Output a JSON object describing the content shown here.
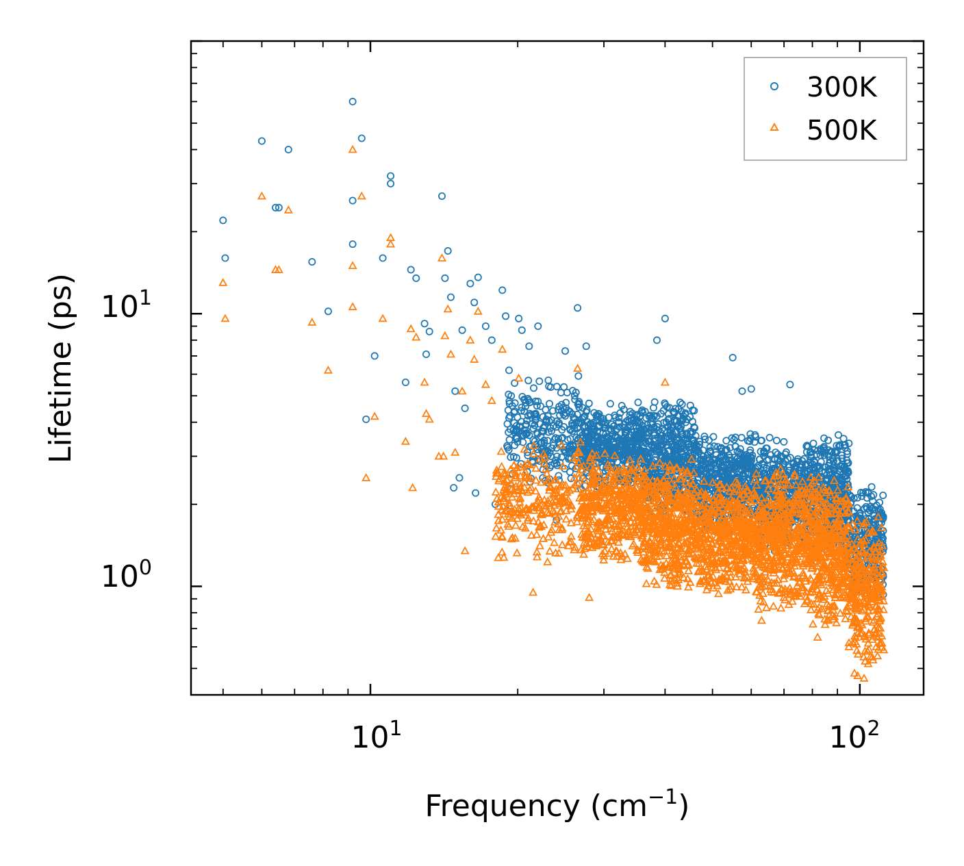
{
  "chart_data": {
    "type": "scatter",
    "xscale": "log",
    "yscale": "log",
    "xlim": [
      4.3,
      135
    ],
    "ylim": [
      0.4,
      100
    ],
    "xlabel": "Frequency (cm",
    "xlabel_sup": "−1",
    "xlabel_suffix": ")",
    "ylabel": "Lifetime (ps)",
    "xticks": [
      {
        "base": "10",
        "exp": "1",
        "value": 10
      },
      {
        "base": "10",
        "exp": "2",
        "value": 100
      }
    ],
    "yticks": [
      {
        "base": "10",
        "exp": "0",
        "value": 1
      },
      {
        "base": "10",
        "exp": "1",
        "value": 10
      }
    ],
    "legend_position": "top-right",
    "series": [
      {
        "name": "300K",
        "color": "#1f77b4",
        "marker": "circle",
        "points": [
          [
            5.0,
            22.0
          ],
          [
            5.05,
            16.0
          ],
          [
            6.0,
            43.0
          ],
          [
            6.4,
            24.5
          ],
          [
            6.5,
            24.5
          ],
          [
            6.8,
            40.0
          ],
          [
            7.6,
            15.5
          ],
          [
            8.2,
            10.2
          ],
          [
            9.2,
            60.0
          ],
          [
            9.2,
            26.0
          ],
          [
            9.2,
            18.0
          ],
          [
            9.6,
            44.0
          ],
          [
            9.8,
            4.1
          ],
          [
            10.2,
            7.0
          ],
          [
            10.6,
            16.0
          ],
          [
            11.0,
            32.0
          ],
          [
            11.0,
            30.0
          ],
          [
            11.8,
            5.6
          ],
          [
            12.1,
            14.5
          ],
          [
            12.4,
            13.5
          ],
          [
            12.9,
            9.2
          ],
          [
            13.0,
            7.1
          ],
          [
            13.2,
            8.6
          ],
          [
            14.0,
            27.0
          ],
          [
            14.2,
            13.5
          ],
          [
            14.4,
            17.0
          ],
          [
            14.6,
            11.5
          ],
          [
            14.9,
            5.2
          ],
          [
            15.4,
            8.7
          ],
          [
            15.6,
            4.5
          ],
          [
            16.0,
            12.9
          ],
          [
            16.3,
            11.0
          ],
          [
            16.6,
            13.6
          ],
          [
            17.2,
            9.0
          ],
          [
            17.7,
            8.0
          ],
          [
            18.6,
            12.2
          ],
          [
            18.9,
            9.8
          ],
          [
            19.2,
            6.2
          ],
          [
            20.1,
            9.6
          ],
          [
            20.4,
            8.7
          ],
          [
            21.1,
            7.6
          ],
          [
            22.0,
            9.0
          ],
          [
            23.1,
            5.7
          ],
          [
            25.0,
            7.3
          ],
          [
            26.5,
            10.5
          ],
          [
            27.6,
            7.6
          ],
          [
            38.5,
            8.0
          ],
          [
            40.0,
            9.6
          ],
          [
            55.0,
            6.9
          ],
          [
            57.5,
            5.2
          ],
          [
            60.0,
            5.3
          ],
          [
            72.0,
            5.5
          ],
          [
            16.4,
            2.2
          ],
          [
            18.0,
            2.0
          ],
          [
            19.0,
            1.9
          ],
          [
            22.5,
            2.5
          ],
          [
            24.0,
            1.75
          ],
          [
            15.2,
            2.5
          ],
          [
            14.8,
            2.3
          ]
        ],
        "clusters": [
          {
            "x": [
              19,
              27
            ],
            "y": [
              2.2,
              6.0
            ],
            "n": 260,
            "seed": 11
          },
          {
            "x": [
              27,
              36
            ],
            "y": [
              2.2,
              4.8
            ],
            "n": 420,
            "seed": 12
          },
          {
            "x": [
              36,
              46
            ],
            "y": [
              1.7,
              5.0
            ],
            "n": 450,
            "seed": 13
          },
          {
            "x": [
              46,
              62
            ],
            "y": [
              1.5,
              3.8
            ],
            "n": 500,
            "seed": 14
          },
          {
            "x": [
              62,
              80
            ],
            "y": [
              1.3,
              3.6
            ],
            "n": 450,
            "seed": 15
          },
          {
            "x": [
              80,
              95
            ],
            "y": [
              1.2,
              3.8
            ],
            "n": 380,
            "seed": 16
          },
          {
            "x": [
              95,
              112
            ],
            "y": [
              0.9,
              2.4
            ],
            "n": 260,
            "seed": 17
          }
        ]
      },
      {
        "name": "500K",
        "color": "#ff7f0e",
        "marker": "triangle",
        "points": [
          [
            5.0,
            13.0
          ],
          [
            5.05,
            9.6
          ],
          [
            6.0,
            27.0
          ],
          [
            6.4,
            14.5
          ],
          [
            6.5,
            14.5
          ],
          [
            6.8,
            24.0
          ],
          [
            7.6,
            9.3
          ],
          [
            8.2,
            6.2
          ],
          [
            9.2,
            40.0
          ],
          [
            9.2,
            15.0
          ],
          [
            9.2,
            10.6
          ],
          [
            9.6,
            27.0
          ],
          [
            9.8,
            2.5
          ],
          [
            10.2,
            4.2
          ],
          [
            10.6,
            9.6
          ],
          [
            11.0,
            19.0
          ],
          [
            11.0,
            18.0
          ],
          [
            11.8,
            3.4
          ],
          [
            12.1,
            8.8
          ],
          [
            12.4,
            8.2
          ],
          [
            12.9,
            5.6
          ],
          [
            13.0,
            4.3
          ],
          [
            13.2,
            4.1
          ],
          [
            14.0,
            16.0
          ],
          [
            14.2,
            8.3
          ],
          [
            14.4,
            10.4
          ],
          [
            14.6,
            7.1
          ],
          [
            14.9,
            3.1
          ],
          [
            15.4,
            5.2
          ],
          [
            15.6,
            1.35
          ],
          [
            16.0,
            8.0
          ],
          [
            16.3,
            6.8
          ],
          [
            16.6,
            10.2
          ],
          [
            17.2,
            5.5
          ],
          [
            17.7,
            4.8
          ],
          [
            18.6,
            7.4
          ],
          [
            20.1,
            5.8
          ],
          [
            26.5,
            6.3
          ],
          [
            40.0,
            5.6
          ],
          [
            12.2,
            2.3
          ],
          [
            13.8,
            3.0
          ],
          [
            14.1,
            3.0
          ],
          [
            21.5,
            0.95
          ],
          [
            28.0,
            0.91
          ],
          [
            63.0,
            0.75
          ],
          [
            82.0,
            0.65
          ],
          [
            95.0,
            0.6
          ],
          [
            97.5,
            0.48
          ],
          [
            99.0,
            0.47
          ],
          [
            102.0,
            0.46
          ],
          [
            104.0,
            0.52
          ],
          [
            106.0,
            0.55
          ],
          [
            108.0,
            0.6
          ],
          [
            110.0,
            0.62
          ]
        ],
        "clusters": [
          {
            "x": [
              18,
              27
            ],
            "y": [
              1.2,
              3.5
            ],
            "n": 260,
            "seed": 21
          },
          {
            "x": [
              27,
              36
            ],
            "y": [
              1.2,
              3.2
            ],
            "n": 420,
            "seed": 22
          },
          {
            "x": [
              36,
              46
            ],
            "y": [
              0.95,
              3.0
            ],
            "n": 450,
            "seed": 23
          },
          {
            "x": [
              46,
              62
            ],
            "y": [
              0.9,
              2.6
            ],
            "n": 520,
            "seed": 24
          },
          {
            "x": [
              62,
              80
            ],
            "y": [
              0.78,
              2.8
            ],
            "n": 470,
            "seed": 25
          },
          {
            "x": [
              80,
              95
            ],
            "y": [
              0.68,
              2.6
            ],
            "n": 380,
            "seed": 26
          },
          {
            "x": [
              95,
              112
            ],
            "y": [
              0.52,
              1.8
            ],
            "n": 280,
            "seed": 27
          }
        ]
      }
    ]
  }
}
